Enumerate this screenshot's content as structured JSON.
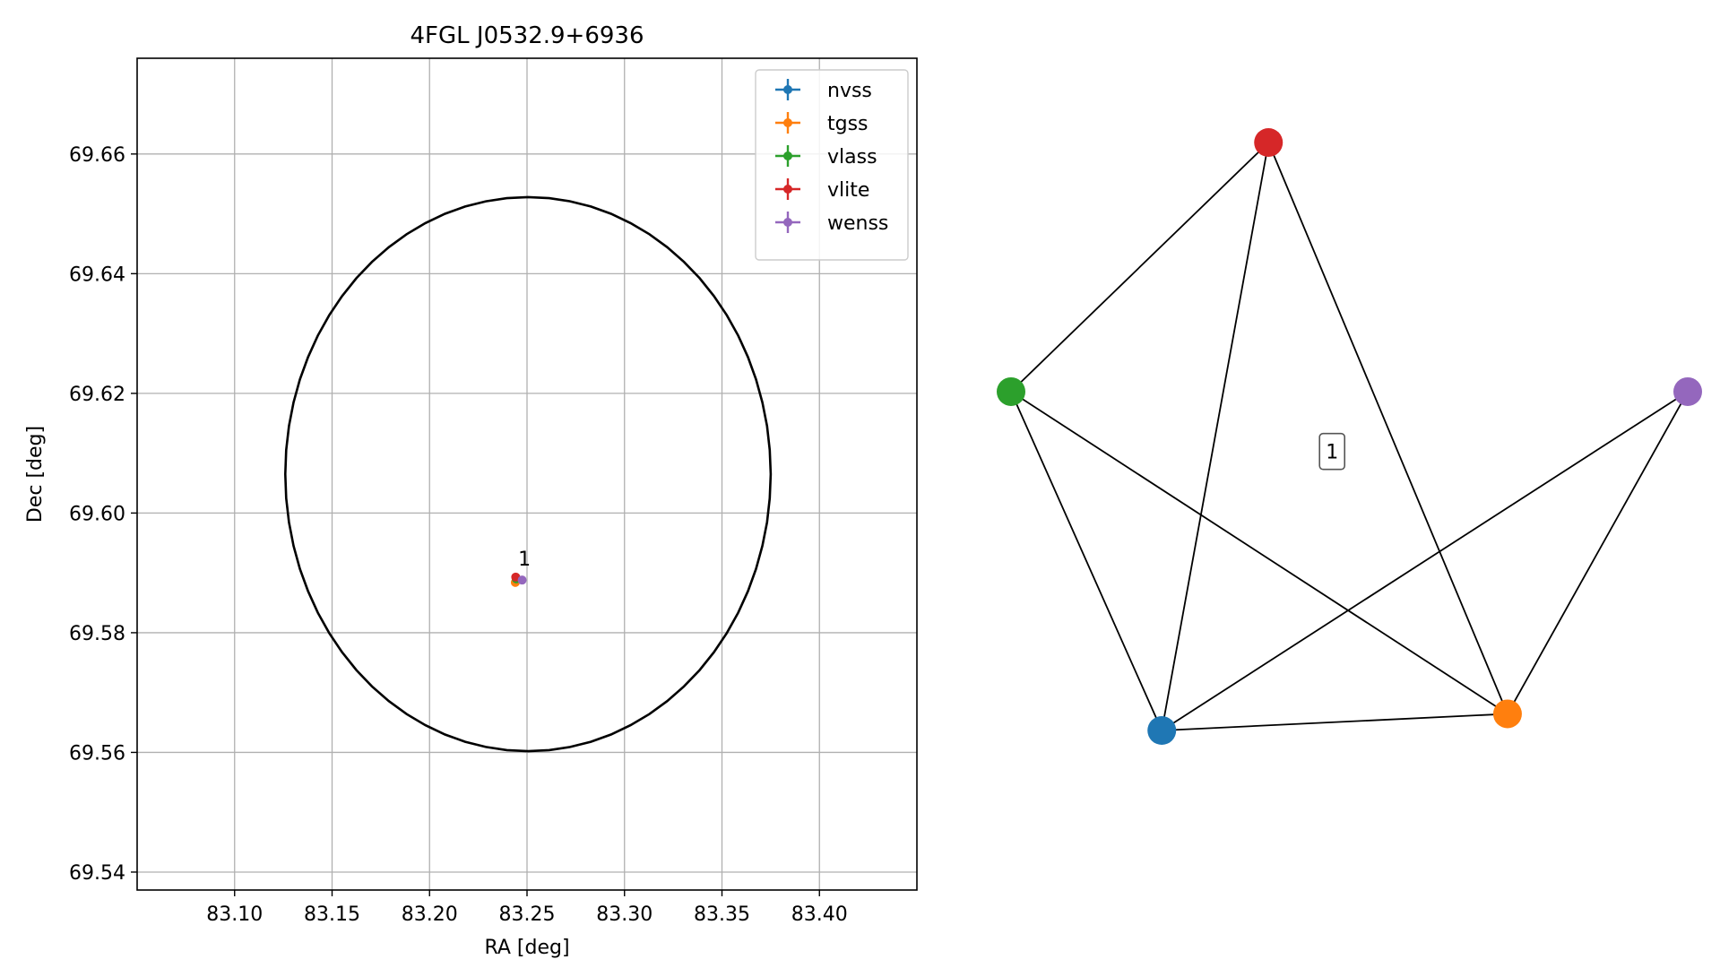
{
  "chart_data": [
    {
      "type": "scatter",
      "title": "4FGL J0532.9+6936",
      "xlabel": "RA [deg]",
      "ylabel": "Dec [deg]",
      "xlim": [
        83.05,
        83.45
      ],
      "ylim": [
        69.537,
        69.676
      ],
      "xticks": [
        83.1,
        83.15,
        83.2,
        83.25,
        83.3,
        83.35,
        83.4
      ],
      "xtick_labels": [
        "83.10",
        "83.15",
        "83.20",
        "83.25",
        "83.30",
        "83.35",
        "83.40"
      ],
      "yticks": [
        69.54,
        69.56,
        69.58,
        69.6,
        69.62,
        69.64,
        69.66
      ],
      "ytick_labels": [
        "69.54",
        "69.56",
        "69.58",
        "69.60",
        "69.62",
        "69.64",
        "69.66"
      ],
      "grid": true,
      "legend_position": "top-right",
      "series": [
        {
          "name": "nvss",
          "color": "#1f77b4",
          "ra": 83.2445,
          "dec": 69.589
        },
        {
          "name": "tgss",
          "color": "#ff7f0e",
          "ra": 83.244,
          "dec": 69.5884
        },
        {
          "name": "vlass",
          "color": "#2ca02c",
          "ra": 83.2445,
          "dec": 69.589
        },
        {
          "name": "vlite",
          "color": "#d62728",
          "ra": 83.2442,
          "dec": 69.5893
        },
        {
          "name": "wenss",
          "color": "#9467bd",
          "ra": 83.2475,
          "dec": 69.5888
        }
      ],
      "ellipse": {
        "center_ra": 83.2505,
        "center_dec": 69.6065,
        "semi_ra": 0.1245,
        "semi_dec": 0.0463,
        "color": "#000000"
      },
      "annotations": [
        {
          "text": "1",
          "ra": 83.2505,
          "dec": 69.5915
        }
      ]
    },
    {
      "type": "network",
      "nodes": [
        {
          "id": "nvss",
          "color": "#1f77b4",
          "x": -0.59,
          "y": -0.77
        },
        {
          "id": "tgss",
          "color": "#ff7f0e",
          "x": 0.35,
          "y": -0.72
        },
        {
          "id": "vlass",
          "color": "#2ca02c",
          "x": -1.0,
          "y": 0.25
        },
        {
          "id": "vlite",
          "color": "#d62728",
          "x": -0.3,
          "y": 1.0
        },
        {
          "id": "wenss",
          "color": "#9467bd",
          "x": 0.84,
          "y": 0.25
        }
      ],
      "edges": [
        [
          "vlite",
          "vlass"
        ],
        [
          "vlite",
          "nvss"
        ],
        [
          "vlite",
          "tgss"
        ],
        [
          "vlass",
          "nvss"
        ],
        [
          "vlass",
          "tgss"
        ],
        [
          "nvss",
          "tgss"
        ],
        [
          "nvss",
          "wenss"
        ],
        [
          "tgss",
          "wenss"
        ]
      ],
      "label": {
        "text": "1",
        "x": -0.127,
        "y": 0.07
      }
    }
  ]
}
